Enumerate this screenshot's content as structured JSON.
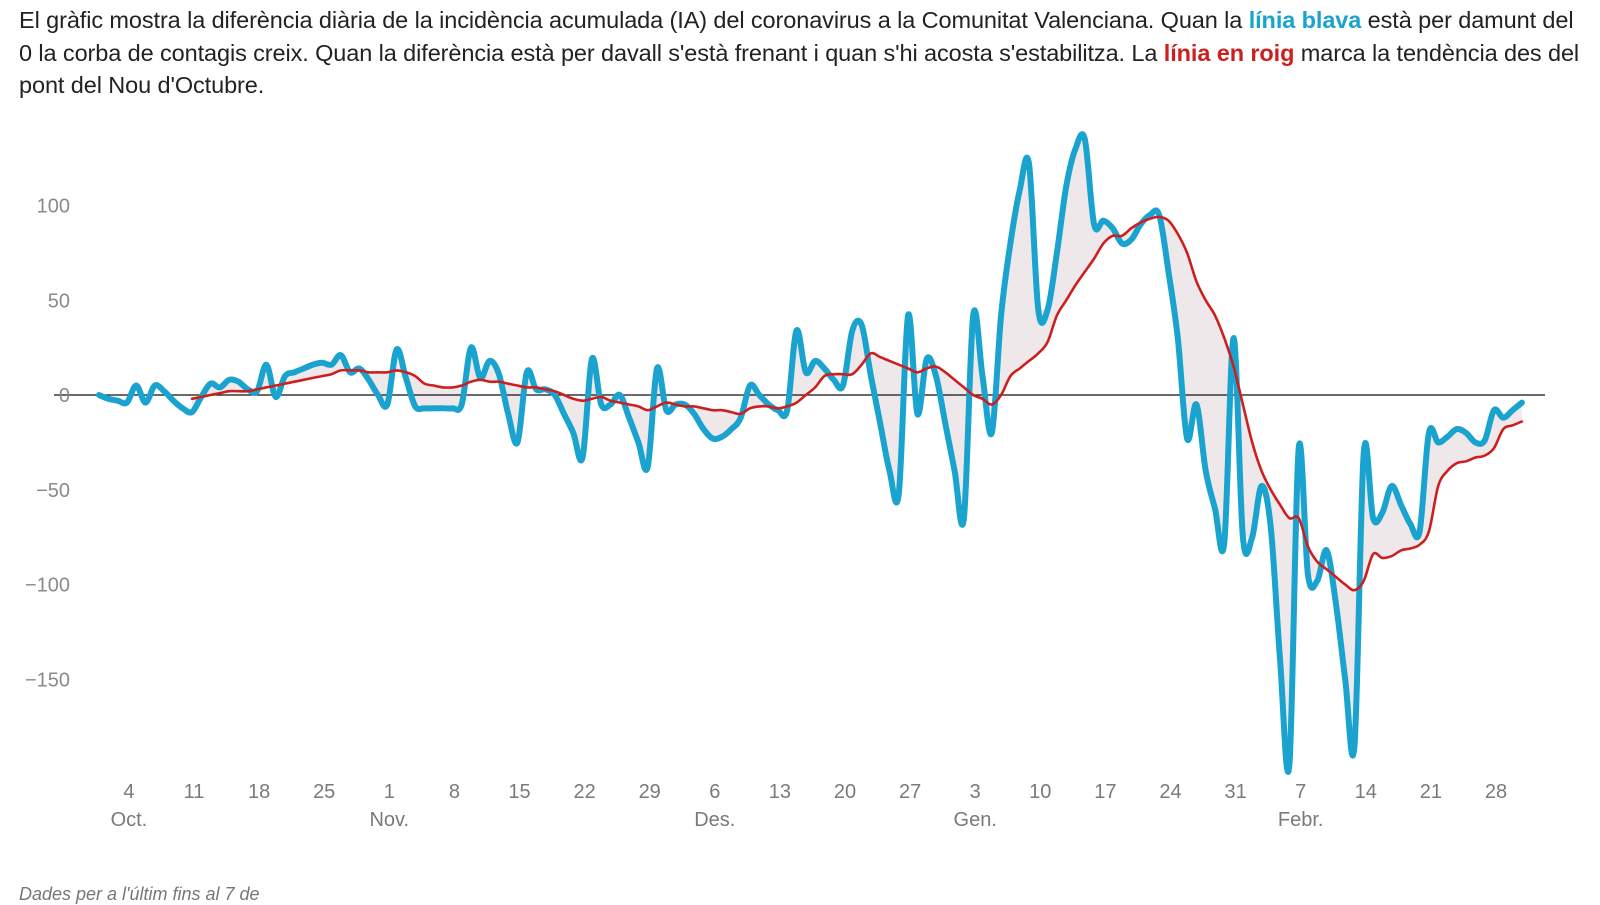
{
  "intro": {
    "part1": "El gràfic mostra la diferència diària de la incidència acumulada (IA) del coronavirus a la Comunitat Valenciana. Quan la ",
    "blue_label": "línia blava",
    "part2": " està per damunt del 0 la corba de contagis creix. Quan la diferència està per davall s'està frenant i quan s'hi acosta s'estabilitza. La ",
    "red_label": "línia en roig",
    "part3": " marca la tendència des del pont del Nou d'Octubre."
  },
  "source": "Dades per a l'últim fins al 7 de",
  "colors": {
    "blue": "#1ba3cf",
    "red": "#cc1f1f",
    "fill": "#ede6e8",
    "zero_line": "#111111",
    "tick_text": "#8a8a8a"
  },
  "chart_data": {
    "type": "line",
    "x_unit": "day",
    "x_start": "Oct. 1",
    "ylim": [
      -200,
      140
    ],
    "grid": false,
    "y_ticks": [
      {
        "value": 100,
        "label": "100"
      },
      {
        "value": 50,
        "label": "50"
      },
      {
        "value": 0,
        "label": "0"
      },
      {
        "value": -50,
        "label": "−50"
      },
      {
        "value": -100,
        "label": "−100"
      },
      {
        "value": -150,
        "label": "−150"
      }
    ],
    "x_ticks": [
      {
        "day": 4,
        "label": "4",
        "month": "Oct."
      },
      {
        "day": 11,
        "label": "11",
        "month": ""
      },
      {
        "day": 18,
        "label": "18",
        "month": ""
      },
      {
        "day": 25,
        "label": "25",
        "month": ""
      },
      {
        "day": 32,
        "label": "1",
        "month": "Nov."
      },
      {
        "day": 39,
        "label": "8",
        "month": ""
      },
      {
        "day": 46,
        "label": "15",
        "month": ""
      },
      {
        "day": 53,
        "label": "22",
        "month": ""
      },
      {
        "day": 60,
        "label": "29",
        "month": ""
      },
      {
        "day": 67,
        "label": "6",
        "month": "Des."
      },
      {
        "day": 74,
        "label": "13",
        "month": ""
      },
      {
        "day": 81,
        "label": "20",
        "month": ""
      },
      {
        "day": 88,
        "label": "27",
        "month": ""
      },
      {
        "day": 95,
        "label": "3",
        "month": "Gen."
      },
      {
        "day": 102,
        "label": "10",
        "month": ""
      },
      {
        "day": 109,
        "label": "17",
        "month": ""
      },
      {
        "day": 116,
        "label": "24",
        "month": ""
      },
      {
        "day": 123,
        "label": "31",
        "month": ""
      },
      {
        "day": 130,
        "label": "7",
        "month": "Febr."
      },
      {
        "day": 137,
        "label": "14",
        "month": ""
      },
      {
        "day": 144,
        "label": "21",
        "month": ""
      },
      {
        "day": 151,
        "label": "28",
        "month": ""
      }
    ],
    "series": [
      {
        "color": "#1ba3cf",
        "points": [
          [
            1,
            0
          ],
          [
            2,
            -2
          ],
          [
            3,
            -3
          ],
          [
            4,
            -4
          ],
          [
            5,
            5
          ],
          [
            6,
            -4
          ],
          [
            7,
            5
          ],
          [
            8,
            2
          ],
          [
            9,
            -3
          ],
          [
            10,
            -7
          ],
          [
            11,
            -9
          ],
          [
            12,
            -1
          ],
          [
            13,
            6
          ],
          [
            14,
            4
          ],
          [
            15,
            8
          ],
          [
            16,
            7
          ],
          [
            17,
            3
          ],
          [
            18,
            2
          ],
          [
            19,
            16
          ],
          [
            20,
            -1
          ],
          [
            21,
            10
          ],
          [
            22,
            12
          ],
          [
            23,
            14
          ],
          [
            24,
            16
          ],
          [
            25,
            17
          ],
          [
            26,
            16
          ],
          [
            27,
            21
          ],
          [
            28,
            12
          ],
          [
            29,
            14
          ],
          [
            30,
            8
          ],
          [
            31,
            0
          ],
          [
            32,
            -5
          ],
          [
            33,
            24
          ],
          [
            34,
            9
          ],
          [
            35,
            -6
          ],
          [
            36,
            -7
          ],
          [
            37,
            -7
          ],
          [
            38,
            -7
          ],
          [
            39,
            -7
          ],
          [
            40,
            -5
          ],
          [
            41,
            25
          ],
          [
            42,
            9
          ],
          [
            43,
            18
          ],
          [
            44,
            11
          ],
          [
            45,
            -10
          ],
          [
            46,
            -25
          ],
          [
            47,
            12
          ],
          [
            48,
            3
          ],
          [
            49,
            3
          ],
          [
            50,
            0
          ],
          [
            51,
            -10
          ],
          [
            52,
            -20
          ],
          [
            53,
            -33
          ],
          [
            54,
            19
          ],
          [
            55,
            -5
          ],
          [
            56,
            -5
          ],
          [
            57,
            0
          ],
          [
            58,
            -12
          ],
          [
            59,
            -25
          ],
          [
            60,
            -38
          ],
          [
            61,
            14
          ],
          [
            62,
            -8
          ],
          [
            63,
            -5
          ],
          [
            64,
            -5
          ],
          [
            65,
            -10
          ],
          [
            66,
            -18
          ],
          [
            67,
            -23
          ],
          [
            68,
            -22
          ],
          [
            69,
            -18
          ],
          [
            70,
            -12
          ],
          [
            71,
            5
          ],
          [
            72,
            0
          ],
          [
            73,
            -5
          ],
          [
            74,
            -8
          ],
          [
            75,
            -8
          ],
          [
            76,
            34
          ],
          [
            77,
            12
          ],
          [
            78,
            18
          ],
          [
            79,
            14
          ],
          [
            80,
            8
          ],
          [
            81,
            5
          ],
          [
            82,
            34
          ],
          [
            83,
            37
          ],
          [
            84,
            10
          ],
          [
            85,
            -15
          ],
          [
            86,
            -40
          ],
          [
            87,
            -52
          ],
          [
            88,
            42
          ],
          [
            89,
            -10
          ],
          [
            90,
            19
          ],
          [
            91,
            10
          ],
          [
            92,
            -15
          ],
          [
            93,
            -40
          ],
          [
            94,
            -65
          ],
          [
            95,
            42
          ],
          [
            96,
            10
          ],
          [
            97,
            -20
          ],
          [
            98,
            42
          ],
          [
            99,
            80
          ],
          [
            100,
            108
          ],
          [
            101,
            122
          ],
          [
            102,
            45
          ],
          [
            103,
            45
          ],
          [
            104,
            75
          ],
          [
            105,
            110
          ],
          [
            106,
            130
          ],
          [
            107,
            135
          ],
          [
            108,
            90
          ],
          [
            109,
            92
          ],
          [
            110,
            88
          ],
          [
            111,
            80
          ],
          [
            112,
            82
          ],
          [
            113,
            90
          ],
          [
            114,
            95
          ],
          [
            115,
            95
          ],
          [
            116,
            65
          ],
          [
            117,
            30
          ],
          [
            118,
            -23
          ],
          [
            119,
            -5
          ],
          [
            120,
            -40
          ],
          [
            121,
            -60
          ],
          [
            122,
            -78
          ],
          [
            123,
            30
          ],
          [
            124,
            -75
          ],
          [
            125,
            -75
          ],
          [
            126,
            -48
          ],
          [
            127,
            -70
          ],
          [
            128,
            -140
          ],
          [
            129,
            -195
          ],
          [
            130,
            -28
          ],
          [
            131,
            -95
          ],
          [
            132,
            -98
          ],
          [
            133,
            -82
          ],
          [
            134,
            -110
          ],
          [
            135,
            -150
          ],
          [
            136,
            -185
          ],
          [
            137,
            -30
          ],
          [
            138,
            -65
          ],
          [
            139,
            -62
          ],
          [
            140,
            -48
          ],
          [
            141,
            -58
          ],
          [
            142,
            -68
          ],
          [
            143,
            -72
          ],
          [
            144,
            -20
          ],
          [
            145,
            -25
          ],
          [
            146,
            -22
          ],
          [
            147,
            -18
          ],
          [
            148,
            -20
          ],
          [
            149,
            -25
          ],
          [
            150,
            -24
          ],
          [
            151,
            -8
          ],
          [
            152,
            -12
          ],
          [
            153,
            -8
          ],
          [
            154,
            -4
          ]
        ]
      },
      {
        "color": "#cc1f1f",
        "points": [
          [
            11,
            -2
          ],
          [
            12,
            -1
          ],
          [
            13,
            0
          ],
          [
            14,
            1
          ],
          [
            15,
            2
          ],
          [
            16,
            2
          ],
          [
            17,
            2
          ],
          [
            18,
            3
          ],
          [
            19,
            4
          ],
          [
            20,
            5
          ],
          [
            21,
            6
          ],
          [
            22,
            7
          ],
          [
            23,
            8
          ],
          [
            24,
            9
          ],
          [
            25,
            10
          ],
          [
            26,
            11
          ],
          [
            27,
            13
          ],
          [
            28,
            13
          ],
          [
            29,
            13
          ],
          [
            30,
            12
          ],
          [
            31,
            12
          ],
          [
            32,
            12
          ],
          [
            33,
            13
          ],
          [
            34,
            12
          ],
          [
            35,
            10
          ],
          [
            36,
            6
          ],
          [
            37,
            5
          ],
          [
            38,
            4
          ],
          [
            39,
            4
          ],
          [
            40,
            5
          ],
          [
            41,
            7
          ],
          [
            42,
            8
          ],
          [
            43,
            7
          ],
          [
            44,
            7
          ],
          [
            45,
            6
          ],
          [
            46,
            5
          ],
          [
            47,
            4
          ],
          [
            48,
            4
          ],
          [
            49,
            3
          ],
          [
            50,
            2
          ],
          [
            51,
            0
          ],
          [
            52,
            -2
          ],
          [
            53,
            -3
          ],
          [
            54,
            -2
          ],
          [
            55,
            -1
          ],
          [
            56,
            -3
          ],
          [
            57,
            -4
          ],
          [
            58,
            -5
          ],
          [
            59,
            -6
          ],
          [
            60,
            -8
          ],
          [
            61,
            -6
          ],
          [
            62,
            -4
          ],
          [
            63,
            -5
          ],
          [
            64,
            -6
          ],
          [
            65,
            -6
          ],
          [
            66,
            -7
          ],
          [
            67,
            -8
          ],
          [
            68,
            -8
          ],
          [
            69,
            -9
          ],
          [
            70,
            -10
          ],
          [
            71,
            -7
          ],
          [
            72,
            -6
          ],
          [
            73,
            -6
          ],
          [
            74,
            -7
          ],
          [
            75,
            -6
          ],
          [
            76,
            -4
          ],
          [
            77,
            0
          ],
          [
            78,
            4
          ],
          [
            79,
            10
          ],
          [
            80,
            11
          ],
          [
            81,
            11
          ],
          [
            82,
            11
          ],
          [
            83,
            16
          ],
          [
            84,
            22
          ],
          [
            85,
            20
          ],
          [
            86,
            18
          ],
          [
            87,
            16
          ],
          [
            88,
            14
          ],
          [
            89,
            12
          ],
          [
            90,
            14
          ],
          [
            91,
            15
          ],
          [
            92,
            12
          ],
          [
            93,
            8
          ],
          [
            94,
            4
          ],
          [
            95,
            0
          ],
          [
            96,
            -2
          ],
          [
            97,
            -5
          ],
          [
            98,
            0
          ],
          [
            99,
            10
          ],
          [
            100,
            14
          ],
          [
            101,
            18
          ],
          [
            102,
            22
          ],
          [
            103,
            28
          ],
          [
            104,
            42
          ],
          [
            105,
            50
          ],
          [
            106,
            58
          ],
          [
            107,
            65
          ],
          [
            108,
            72
          ],
          [
            109,
            80
          ],
          [
            110,
            84
          ],
          [
            111,
            84
          ],
          [
            112,
            88
          ],
          [
            113,
            91
          ],
          [
            114,
            93
          ],
          [
            115,
            94
          ],
          [
            116,
            92
          ],
          [
            117,
            85
          ],
          [
            118,
            75
          ],
          [
            119,
            60
          ],
          [
            120,
            50
          ],
          [
            121,
            42
          ],
          [
            122,
            30
          ],
          [
            123,
            15
          ],
          [
            124,
            -5
          ],
          [
            125,
            -25
          ],
          [
            126,
            -40
          ],
          [
            127,
            -50
          ],
          [
            128,
            -58
          ],
          [
            129,
            -65
          ],
          [
            130,
            -65
          ],
          [
            131,
            -80
          ],
          [
            132,
            -88
          ],
          [
            133,
            -92
          ],
          [
            134,
            -96
          ],
          [
            135,
            -100
          ],
          [
            136,
            -103
          ],
          [
            137,
            -98
          ],
          [
            138,
            -84
          ],
          [
            139,
            -86
          ],
          [
            140,
            -85
          ],
          [
            141,
            -82
          ],
          [
            142,
            -81
          ],
          [
            143,
            -79
          ],
          [
            144,
            -72
          ],
          [
            145,
            -48
          ],
          [
            146,
            -40
          ],
          [
            147,
            -36
          ],
          [
            148,
            -35
          ],
          [
            149,
            -33
          ],
          [
            150,
            -32
          ],
          [
            151,
            -28
          ],
          [
            152,
            -18
          ],
          [
            153,
            -16
          ],
          [
            154,
            -14
          ]
        ]
      }
    ]
  }
}
